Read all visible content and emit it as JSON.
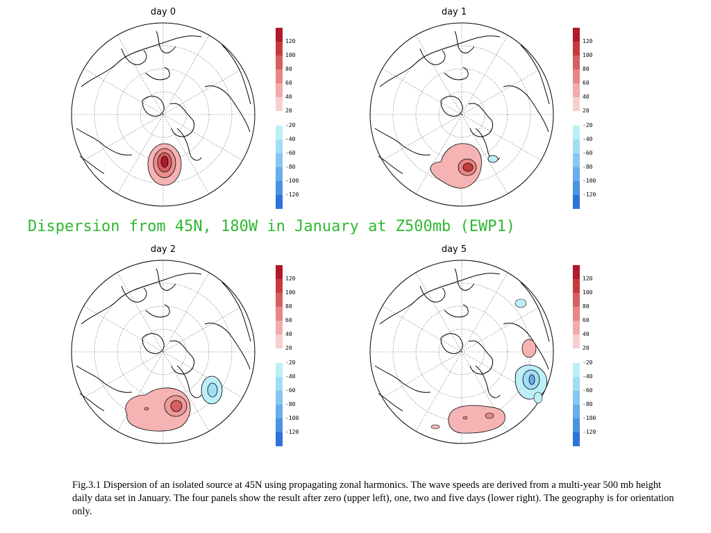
{
  "heading": "Dispersion from 45N, 180W in January at Z500mb (EWP1)",
  "caption": "Fig.3.1 Dispersion of an isolated source at 45N using propagating zonal harmonics. The wave speeds are derived from a multi-year 500 mb height daily data set in January. The four panels show the result after zero (upper left), one, two and five days (lower right). The geography is for orientation only.",
  "colorbar": {
    "positive_labels": [
      "120",
      "100",
      "80",
      "60",
      "40",
      "20"
    ],
    "negative_labels": [
      "-20",
      "-40",
      "-60",
      "-80",
      "-100",
      "-120"
    ],
    "positive_colors": [
      "#b2182b",
      "#c83a3a",
      "#d75f5f",
      "#e88585",
      "#f2aaaa",
      "#f8cfcf"
    ],
    "negative_colors": [
      "#bdeff7",
      "#a3dcf5",
      "#86c6f0",
      "#68aeea",
      "#4a92e2",
      "#2b73d8"
    ]
  },
  "panels": [
    {
      "title": "day 0"
    },
    {
      "title": "day 1"
    },
    {
      "title": "day 2"
    },
    {
      "title": "day 5"
    }
  ]
}
